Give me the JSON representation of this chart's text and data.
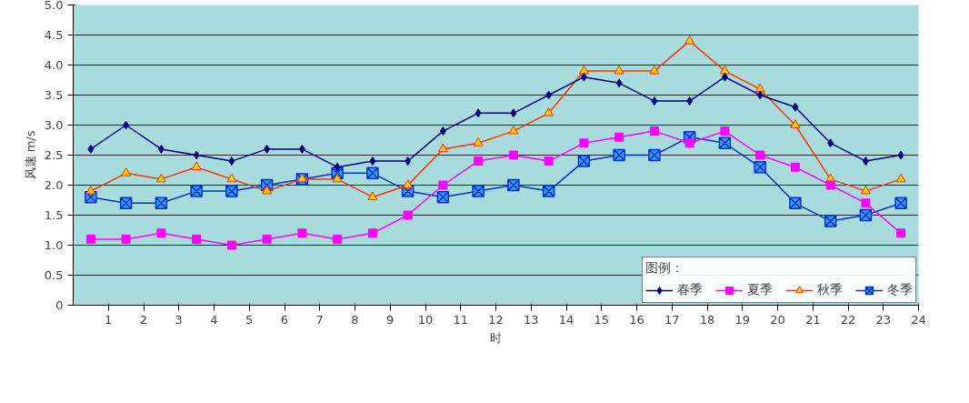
{
  "chart_data": {
    "type": "line",
    "ylabel": "风速 m/s",
    "xlabel": "时",
    "legend_title": "图例：",
    "x": [
      0.5,
      1.5,
      2.5,
      3.5,
      4.5,
      5.5,
      6.5,
      7.5,
      8.5,
      9.5,
      10.5,
      11.5,
      12.5,
      13.5,
      14.5,
      15.5,
      16.5,
      17.5,
      18.5,
      19.5,
      20.5,
      21.5,
      22.5,
      23.5
    ],
    "xlim": [
      0,
      24
    ],
    "xticks": [
      1,
      2,
      3,
      4,
      5,
      6,
      7,
      8,
      9,
      10,
      11,
      12,
      13,
      14,
      15,
      16,
      17,
      18,
      19,
      20,
      21,
      22,
      23,
      24
    ],
    "ylim": [
      0,
      5
    ],
    "yticks": [
      0,
      0.5,
      {
        "value": 1,
        "label": "1.0"
      },
      1.5,
      {
        "value": 2,
        "label": "2.0"
      },
      2.5,
      {
        "value": 3,
        "label": "3.0"
      },
      3.5,
      {
        "value": 4,
        "label": "4.0"
      },
      4.5,
      {
        "value": 5,
        "label": "5.0"
      }
    ],
    "grid": "y",
    "legend": "bottom right",
    "series": [
      {
        "name": "春季",
        "color": "#000080",
        "marker": "diamond",
        "values": [
          2.6,
          3.0,
          2.6,
          2.5,
          2.4,
          2.6,
          2.6,
          2.3,
          2.4,
          2.4,
          2.9,
          3.2,
          3.2,
          3.5,
          3.8,
          3.7,
          3.4,
          3.4,
          3.8,
          3.5,
          3.3,
          2.7,
          2.4,
          2.5
        ]
      },
      {
        "name": "夏季",
        "color": "#ff00ff",
        "marker": "square",
        "values": [
          1.1,
          1.1,
          1.2,
          1.1,
          1.0,
          1.1,
          1.2,
          1.1,
          1.2,
          1.5,
          2.0,
          2.4,
          2.5,
          2.4,
          2.7,
          2.8,
          2.9,
          2.7,
          2.9,
          2.5,
          2.3,
          2.0,
          1.7,
          1.2
        ]
      },
      {
        "name": "秋季",
        "color": "#ff3300",
        "marker": "triangle",
        "values": [
          1.9,
          2.2,
          2.1,
          2.3,
          2.1,
          1.9,
          2.1,
          2.1,
          1.8,
          2.0,
          2.6,
          2.7,
          2.9,
          3.2,
          3.9,
          3.9,
          3.9,
          4.4,
          3.9,
          3.6,
          3.0,
          2.1,
          1.9,
          2.1
        ]
      },
      {
        "name": "冬季",
        "color": "#0033cc",
        "marker": "cross",
        "values": [
          1.8,
          1.7,
          1.7,
          1.9,
          1.9,
          2.0,
          2.1,
          2.2,
          2.2,
          1.9,
          1.8,
          1.9,
          2.0,
          1.9,
          2.4,
          2.5,
          2.5,
          2.8,
          2.7,
          2.3,
          1.7,
          1.4,
          1.5,
          1.7
        ]
      }
    ]
  }
}
